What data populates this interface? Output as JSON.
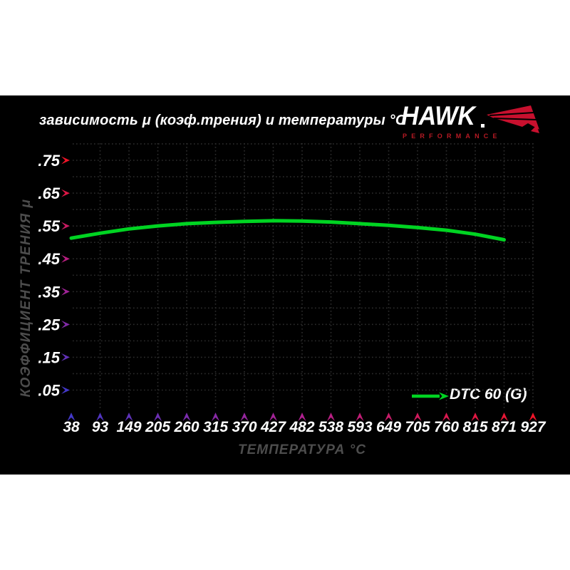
{
  "page": {
    "background": "#ffffff",
    "panel_background": "#000000"
  },
  "header": {
    "logo": {
      "brand": "HAWK",
      "subbrand": "PERFORMANCE"
    }
  },
  "colors": {
    "axis_red": "#f01428",
    "axis_magenta": "#b02090",
    "axis_blue": "#4338c8",
    "grid": "#2d2d2d",
    "tick_label": "#ffffff",
    "axis_title": "#4d4d4d",
    "series_green": "#00d422",
    "logo_red": "#c8102e",
    "logo_sub_red": "#b61a24"
  },
  "chart_data": {
    "type": "line",
    "title": "зависимость μ (коэф.трения) и температуры °C",
    "xlabel": "ТЕМПЕРАТУРА °C",
    "ylabel": "КОЭФФИЦИЕНТ ТРЕНИЯ μ",
    "x_ticks": [
      38,
      93,
      149,
      205,
      260,
      315,
      370,
      427,
      482,
      538,
      593,
      649,
      705,
      760,
      815,
      871,
      927
    ],
    "y_tick_labels": [
      ".75",
      ".65",
      ".55",
      ".45",
      ".35",
      ".25",
      ".15",
      ".05"
    ],
    "y_tick_values": [
      0.75,
      0.65,
      0.55,
      0.45,
      0.35,
      0.25,
      0.15,
      0.05
    ],
    "ylim": [
      0,
      0.8
    ],
    "grid": "dotted",
    "legend_position": "bottom-right",
    "series": [
      {
        "name": "DTC 60 (G)",
        "color": "#00d422",
        "x": [
          38,
          93,
          149,
          205,
          260,
          315,
          370,
          427,
          482,
          538,
          593,
          649,
          705,
          760,
          815,
          871
        ],
        "values": [
          0.513,
          0.528,
          0.541,
          0.55,
          0.557,
          0.561,
          0.564,
          0.566,
          0.565,
          0.562,
          0.557,
          0.552,
          0.545,
          0.537,
          0.525,
          0.508
        ]
      }
    ]
  }
}
